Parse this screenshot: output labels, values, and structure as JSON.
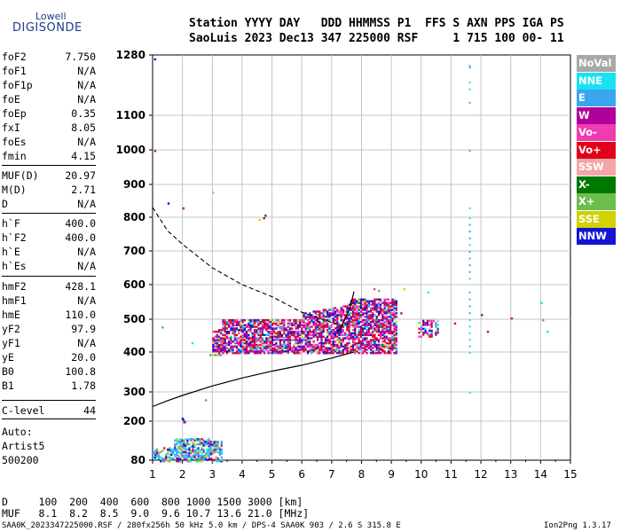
{
  "logo": {
    "line1": "Lowell",
    "line2": "DIGISONDE"
  },
  "header": {
    "line1": "Station YYYY DAY   DDD HHMMSS P1  FFS S AXN PPS IGA PS",
    "line2": "SaoLuis 2023 Dec13 347 225000 RSF     1 715 100 00- 11"
  },
  "params": [
    {
      "k": "foF2",
      "v": "7.750"
    },
    {
      "k": "foF1",
      "v": "N/A"
    },
    {
      "k": "foF1p",
      "v": "N/A"
    },
    {
      "k": "foE",
      "v": "N/A"
    },
    {
      "k": "foEp",
      "v": "0.35"
    },
    {
      "k": "fxI",
      "v": "8.05"
    },
    {
      "k": "foEs",
      "v": "N/A"
    },
    {
      "k": "fmin",
      "v": "4.15"
    },
    {
      "k": "MUF(D)",
      "v": "20.97"
    },
    {
      "k": "M(D)",
      "v": "2.71"
    },
    {
      "k": "D",
      "v": "N/A"
    },
    {
      "k": "h`F",
      "v": "400.0"
    },
    {
      "k": "h`F2",
      "v": "400.0"
    },
    {
      "k": "h`E",
      "v": "N/A"
    },
    {
      "k": "h`Es",
      "v": "N/A"
    },
    {
      "k": "hmF2",
      "v": "428.1"
    },
    {
      "k": "hmF1",
      "v": "N/A"
    },
    {
      "k": "hmE",
      "v": "110.0"
    },
    {
      "k": "yF2",
      "v": "97.9"
    },
    {
      "k": "yF1",
      "v": "N/A"
    },
    {
      "k": "yE",
      "v": "20.0"
    },
    {
      "k": "B0",
      "v": "100.8"
    },
    {
      "k": "B1",
      "v": "1.78"
    },
    {
      "k": "C-level",
      "v": "44"
    }
  ],
  "auto": {
    "line1": "Auto:",
    "line2": "Artist5",
    "line3": "500200"
  },
  "footer": {
    "d_row": "D     100  200  400  600  800 1000 1500 3000 [km]",
    "muf_row": "MUF   8.1  8.2  8.5  9.0  9.6 10.7 13.6 21.0 [MHz]",
    "file_line": "SAA0K_2023347225000.RSF / 280fx256h 50 kHz 5.0 km / DPS-4 SAA0K 903 / 2.6 S 315.8 E",
    "version": "Ion2Png 1.3.17"
  },
  "legend": [
    {
      "label": "NoVal",
      "color": "#a8a8a8"
    },
    {
      "label": "NNE",
      "color": "#19e3f2"
    },
    {
      "label": "E",
      "color": "#3aa6ee"
    },
    {
      "label": "W",
      "color": "#b0009a"
    },
    {
      "label": "Vo-",
      "color": "#f03cb0"
    },
    {
      "label": "Vo+",
      "color": "#e2001a"
    },
    {
      "label": "SSW",
      "color": "#f2a6a6"
    },
    {
      "label": "X-",
      "color": "#007800"
    },
    {
      "label": "X+",
      "color": "#6cbe4c"
    },
    {
      "label": "SSE",
      "color": "#d2d200"
    },
    {
      "label": "NNW",
      "color": "#1414d2"
    }
  ],
  "chart_data": {
    "type": "scatter",
    "x_ticks": [
      "1",
      "2",
      "3",
      "4",
      "5",
      "6",
      "7",
      "8",
      "9",
      "10",
      "11",
      "12",
      "13",
      "14",
      "15"
    ],
    "y_ticks": [
      "80",
      "200",
      "300",
      "400",
      "500",
      "600",
      "700",
      "800",
      "900",
      "1000",
      "1100",
      "1280"
    ],
    "xlim": [
      1,
      15
    ],
    "y_scale": "ionogram (non-linear height axis)",
    "grid": true,
    "profile_curve": [
      [
        1.0,
        250
      ],
      [
        1.5,
        270
      ],
      [
        2.0,
        288
      ],
      [
        3.0,
        315
      ],
      [
        4.0,
        335
      ],
      [
        5.0,
        352
      ],
      [
        6.0,
        367
      ],
      [
        7.0,
        385
      ],
      [
        7.75,
        400
      ]
    ],
    "trace_curve": [
      [
        7.2,
        460
      ],
      [
        7.4,
        490
      ],
      [
        7.6,
        530
      ],
      [
        7.75,
        580
      ]
    ],
    "dashed_curve": [
      [
        1.0,
        830
      ],
      [
        1.5,
        760
      ],
      [
        2.0,
        720
      ],
      [
        3.0,
        650
      ],
      [
        4.0,
        600
      ],
      [
        5.0,
        565
      ],
      [
        6.0,
        520
      ],
      [
        7.0,
        490
      ],
      [
        7.4,
        480
      ]
    ],
    "echo_regions": [
      {
        "x": [
          3.0,
          9.2
        ],
        "y": [
          400,
          560
        ],
        "note": "F-region echoes"
      },
      {
        "x": [
          1.0,
          3.3
        ],
        "y": [
          80,
          160
        ],
        "note": "low-height echoes"
      },
      {
        "x": [
          9.9,
          10.6
        ],
        "y": [
          440,
          500
        ],
        "note": "sparse echoes"
      }
    ]
  }
}
